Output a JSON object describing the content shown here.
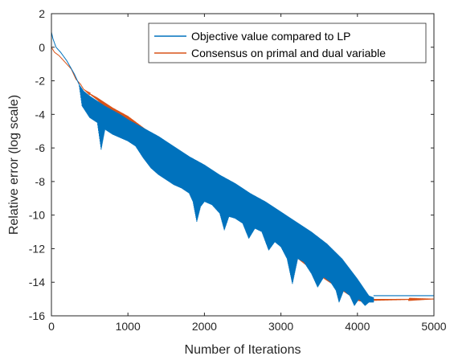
{
  "chart_data": {
    "type": "line",
    "title": "",
    "xlabel": "Number of Iterations",
    "ylabel": "Relative error (log scale)",
    "xlim": [
      0,
      5000
    ],
    "ylim": [
      -16,
      2
    ],
    "xticks": [
      0,
      1000,
      2000,
      3000,
      4000,
      5000
    ],
    "yticks": [
      2,
      0,
      -2,
      -4,
      -6,
      -8,
      -10,
      -12,
      -14,
      -16
    ],
    "grid": false,
    "legend_position": "top-right",
    "series": [
      {
        "name": "Objective value compared to LP",
        "color": "#0072BD",
        "envelope_upper": [
          [
            0,
            0.9
          ],
          [
            20,
            0.5
          ],
          [
            60,
            0.0
          ],
          [
            120,
            -0.3
          ],
          [
            200,
            -0.8
          ],
          [
            300,
            -1.6
          ],
          [
            360,
            -2.2
          ],
          [
            420,
            -2.6
          ],
          [
            500,
            -2.9
          ],
          [
            600,
            -3.2
          ],
          [
            700,
            -3.5
          ],
          [
            800,
            -3.75
          ],
          [
            900,
            -4.0
          ],
          [
            1000,
            -4.3
          ],
          [
            1200,
            -4.8
          ],
          [
            1400,
            -5.3
          ],
          [
            1600,
            -5.9
          ],
          [
            1800,
            -6.5
          ],
          [
            2000,
            -7.0
          ],
          [
            2200,
            -7.6
          ],
          [
            2400,
            -8.1
          ],
          [
            2600,
            -8.7
          ],
          [
            2800,
            -9.2
          ],
          [
            3000,
            -9.8
          ],
          [
            3200,
            -10.4
          ],
          [
            3400,
            -11.0
          ],
          [
            3600,
            -11.7
          ],
          [
            3800,
            -12.6
          ],
          [
            4000,
            -13.8
          ],
          [
            4150,
            -14.8
          ],
          [
            4210,
            -14.9
          ],
          [
            4220,
            -14.8
          ],
          [
            5000,
            -14.8
          ]
        ],
        "envelope_lower": [
          [
            0,
            0.9
          ],
          [
            20,
            0.5
          ],
          [
            60,
            0.0
          ],
          [
            120,
            -0.3
          ],
          [
            200,
            -0.8
          ],
          [
            300,
            -1.6
          ],
          [
            360,
            -2.2
          ],
          [
            400,
            -3.5
          ],
          [
            500,
            -4.2
          ],
          [
            600,
            -4.5
          ],
          [
            650,
            -6.1
          ],
          [
            700,
            -4.9
          ],
          [
            800,
            -5.2
          ],
          [
            900,
            -5.4
          ],
          [
            1000,
            -5.6
          ],
          [
            1100,
            -5.9
          ],
          [
            1200,
            -6.6
          ],
          [
            1300,
            -7.2
          ],
          [
            1400,
            -7.6
          ],
          [
            1500,
            -7.9
          ],
          [
            1600,
            -8.2
          ],
          [
            1700,
            -8.4
          ],
          [
            1800,
            -8.7
          ],
          [
            1850,
            -9.2
          ],
          [
            1900,
            -10.4
          ],
          [
            1950,
            -9.5
          ],
          [
            2000,
            -9.2
          ],
          [
            2100,
            -9.4
          ],
          [
            2200,
            -9.9
          ],
          [
            2260,
            -10.9
          ],
          [
            2320,
            -10.1
          ],
          [
            2400,
            -10.2
          ],
          [
            2500,
            -10.5
          ],
          [
            2580,
            -11.4
          ],
          [
            2660,
            -10.8
          ],
          [
            2750,
            -11.0
          ],
          [
            2840,
            -12.1
          ],
          [
            2920,
            -11.6
          ],
          [
            3000,
            -11.9
          ],
          [
            3080,
            -12.6
          ],
          [
            3150,
            -14.1
          ],
          [
            3220,
            -12.6
          ],
          [
            3300,
            -12.8
          ],
          [
            3400,
            -13.5
          ],
          [
            3480,
            -14.3
          ],
          [
            3560,
            -13.7
          ],
          [
            3650,
            -14.0
          ],
          [
            3720,
            -14.5
          ],
          [
            3760,
            -15.2
          ],
          [
            3820,
            -14.5
          ],
          [
            3900,
            -14.8
          ],
          [
            3960,
            -15.4
          ],
          [
            4020,
            -15.0
          ],
          [
            4100,
            -15.4
          ],
          [
            4150,
            -15.2
          ],
          [
            4210,
            -15.2
          ]
        ],
        "final_value": -14.8
      },
      {
        "name": "Consensus on primal and dual variable",
        "color": "#D95319",
        "envelope_upper": [
          [
            0,
            0.0
          ],
          [
            40,
            -0.3
          ],
          [
            100,
            -0.5
          ],
          [
            180,
            -0.9
          ],
          [
            260,
            -1.3
          ],
          [
            320,
            -1.9
          ],
          [
            380,
            -2.2
          ],
          [
            420,
            -2.5
          ],
          [
            500,
            -2.75
          ],
          [
            600,
            -3.0
          ],
          [
            800,
            -3.6
          ],
          [
            1000,
            -4.1
          ],
          [
            1500,
            -5.8
          ],
          [
            2000,
            -7.4
          ],
          [
            2500,
            -9.0
          ],
          [
            3000,
            -10.6
          ],
          [
            3500,
            -12.3
          ],
          [
            4000,
            -14.1
          ],
          [
            4100,
            -14.6
          ],
          [
            4200,
            -15.0
          ],
          [
            5000,
            -15.0
          ]
        ],
        "envelope_lower": [
          [
            0,
            0.0
          ],
          [
            40,
            -0.3
          ],
          [
            100,
            -0.5
          ],
          [
            180,
            -0.9
          ],
          [
            260,
            -1.3
          ],
          [
            320,
            -1.9
          ],
          [
            380,
            -2.2
          ],
          [
            420,
            -2.5
          ],
          [
            500,
            -2.8
          ],
          [
            600,
            -3.15
          ],
          [
            800,
            -4.0
          ],
          [
            1000,
            -4.7
          ],
          [
            1500,
            -6.5
          ],
          [
            2000,
            -8.3
          ],
          [
            2500,
            -10.1
          ],
          [
            3000,
            -11.8
          ],
          [
            3500,
            -13.6
          ],
          [
            4000,
            -15.1
          ],
          [
            4100,
            -15.2
          ],
          [
            4200,
            -15.1
          ],
          [
            5000,
            -15.0
          ]
        ],
        "final_value": -15.0
      }
    ]
  }
}
